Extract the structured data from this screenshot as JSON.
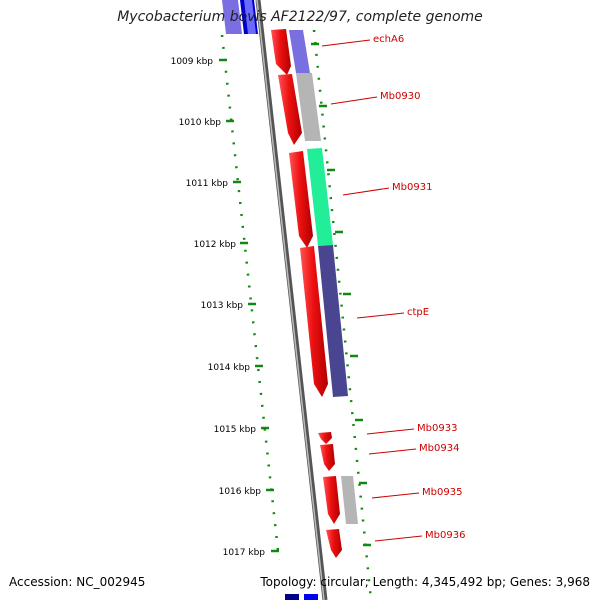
{
  "title": "Mycobacterium bovis AF2122/97, complete genome",
  "footer": {
    "accession": "Accession: NC_002945",
    "summary": "Topology: circular; Length: 4,345,492 bp; Genes: 3,968"
  },
  "ruler_labels": [
    "1009 kbp",
    "1010 kbp",
    "1011 kbp",
    "1012 kbp",
    "1013 kbp",
    "1014 kbp",
    "1015 kbp",
    "1016 kbp",
    "1017 kbp"
  ],
  "gene_labels": [
    "echA6",
    "Mb0930",
    "Mb0931",
    "ctpE",
    "Mb0933",
    "Mb0934",
    "Mb0935",
    "Mb0936"
  ],
  "colors": {
    "backbone": "#777777",
    "cds": "#ee1111",
    "ruler": "#118811",
    "label": "#cc0000",
    "blue_dark": "#0000cc",
    "blue_light": "#7a6fe0",
    "gray": "#b5b5b5",
    "teal": "#22ee99",
    "navy": "#4a4590"
  }
}
